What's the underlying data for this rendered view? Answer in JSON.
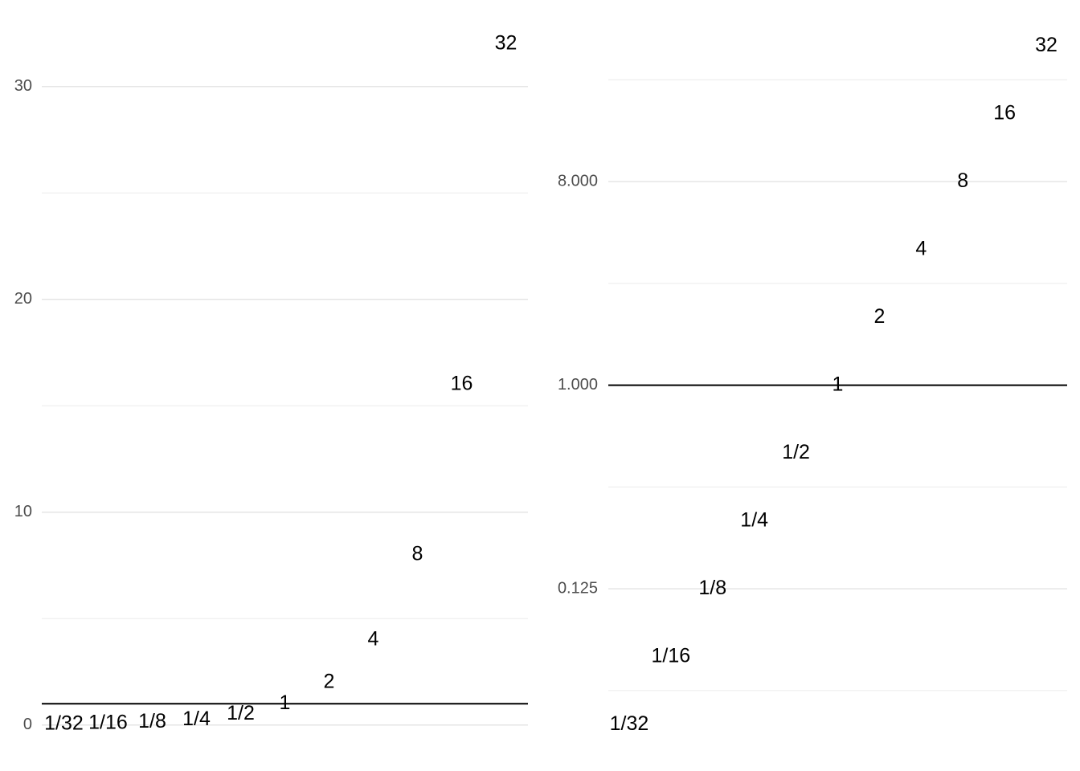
{
  "chart_data": [
    {
      "type": "text",
      "scale": "linear",
      "values": [
        0.03125,
        0.0625,
        0.125,
        0.25,
        0.5,
        1,
        2,
        4,
        8,
        16,
        32
      ],
      "value_labels": [
        "1/32",
        "1/16",
        "1/8",
        "1/4",
        "1/2",
        "1",
        "2",
        "4",
        "8",
        "16",
        "32"
      ],
      "ylim": [
        -0.65,
        33.31
      ],
      "yticks": [
        0,
        10,
        20,
        30
      ],
      "minor_yticks": [
        5,
        15,
        25
      ],
      "hline": 1,
      "grid": true,
      "color": "#000000"
    },
    {
      "type": "text",
      "scale": "log2",
      "values": [
        0.03125,
        0.0625,
        0.125,
        0.25,
        0.5,
        1,
        2,
        4,
        8,
        16,
        32
      ],
      "value_labels": [
        "1/32",
        "1/16",
        "1/8",
        "1/4",
        "1/2",
        "1",
        "2",
        "4",
        "8",
        "16",
        "32"
      ],
      "ylim": [
        0.027,
        43.4
      ],
      "yticks": [
        {
          "value": 0.125,
          "label": "0.125"
        },
        {
          "value": 1,
          "label": "1.000"
        },
        {
          "value": 8,
          "label": "8.000"
        }
      ],
      "minor_yticks": [
        0.0442,
        0.3536,
        2.828,
        22.63
      ],
      "hline": 1,
      "grid": true,
      "color": "#000000"
    }
  ]
}
